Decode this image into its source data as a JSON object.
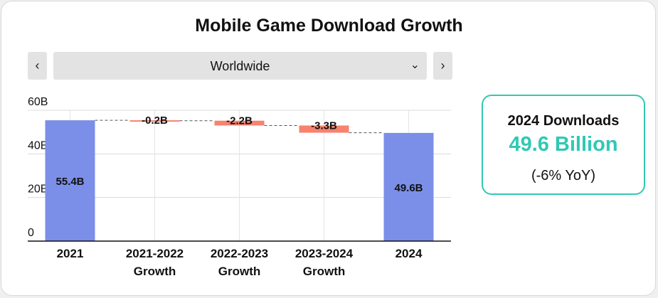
{
  "title": "Mobile Game Download Growth",
  "nav": {
    "prev_icon": "‹",
    "next_icon": "›",
    "region": "Worldwide",
    "dropdown_icon": "⌄"
  },
  "colors": {
    "total": "#7b8fe8",
    "decrease": "#f8826e",
    "kpi_accent": "#2fc9b4",
    "kpi_border": "#33c8b4"
  },
  "chart_data": {
    "type": "waterfall",
    "ylim": [
      0,
      60
    ],
    "yunit": "B",
    "yticks": [
      "0",
      "20B",
      "40B",
      "60B"
    ],
    "ytick_values": [
      0,
      20,
      40,
      60
    ],
    "steps": [
      {
        "label": [
          "2021"
        ],
        "kind": "total",
        "value": 55.4,
        "text": "55.4B"
      },
      {
        "label": [
          "2021-2022",
          "Growth"
        ],
        "kind": "delta",
        "value": -0.2,
        "text": "-0.2B"
      },
      {
        "label": [
          "2022-2023",
          "Growth"
        ],
        "kind": "delta",
        "value": -2.2,
        "text": "-2.2B"
      },
      {
        "label": [
          "2023-2024",
          "Growth"
        ],
        "kind": "delta",
        "value": -3.3,
        "text": "-3.3B"
      },
      {
        "label": [
          "2024"
        ],
        "kind": "total",
        "value": 49.6,
        "text": "49.6B"
      }
    ]
  },
  "kpi": {
    "label": "2024 Downloads",
    "value": "49.6 Billion",
    "change": "(-6% YoY)"
  }
}
